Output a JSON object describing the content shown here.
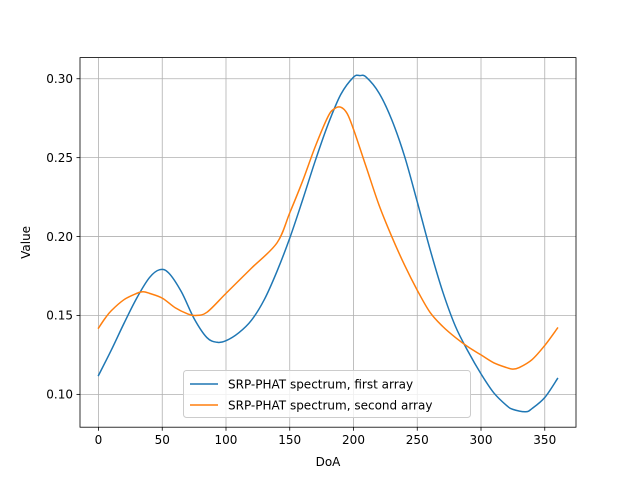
{
  "chart_data": {
    "type": "line",
    "title": "",
    "xlabel": "DoA",
    "ylabel": "Value",
    "xlim": [
      -14.5,
      374.5
    ],
    "ylim": [
      0.0792,
      0.3134
    ],
    "xticks": [
      0,
      50,
      100,
      150,
      200,
      250,
      300,
      350
    ],
    "yticks": [
      0.1,
      0.15,
      0.2,
      0.25,
      0.3
    ],
    "ytick_labels": [
      "0.10",
      "0.15",
      "0.20",
      "0.25",
      "0.30"
    ],
    "grid": true,
    "legend_position": "lower-center",
    "series": [
      {
        "name": "SRP-PHAT spectrum, first array",
        "color": "#1f77b4",
        "x": [
          0,
          10,
          20,
          30,
          40,
          48,
          55,
          65,
          75,
          85,
          93,
          100,
          110,
          120,
          130,
          140,
          150,
          160,
          170,
          180,
          190,
          200,
          205,
          210,
          220,
          230,
          240,
          250,
          260,
          270,
          280,
          290,
          300,
          310,
          320,
          325,
          335,
          340,
          350,
          360
        ],
        "y": [
          0.112,
          0.128,
          0.145,
          0.161,
          0.174,
          0.179,
          0.177,
          0.165,
          0.148,
          0.136,
          0.133,
          0.134,
          0.139,
          0.147,
          0.16,
          0.178,
          0.199,
          0.223,
          0.248,
          0.271,
          0.29,
          0.301,
          0.302,
          0.301,
          0.291,
          0.274,
          0.251,
          0.222,
          0.192,
          0.165,
          0.143,
          0.127,
          0.113,
          0.101,
          0.093,
          0.0905,
          0.089,
          0.091,
          0.098,
          0.11
        ]
      },
      {
        "name": "SRP-PHAT spectrum, second array",
        "color": "#ff7f0e",
        "x": [
          0,
          5,
          10,
          20,
          30,
          35,
          40,
          50,
          60,
          70,
          76,
          85,
          100,
          120,
          140,
          150,
          160,
          170,
          180,
          185,
          190,
          195,
          200,
          210,
          220,
          230,
          240,
          250,
          260,
          270,
          280,
          290,
          300,
          310,
          320,
          325,
          330,
          340,
          350,
          360
        ],
        "y": [
          0.142,
          0.148,
          0.153,
          0.16,
          0.164,
          0.165,
          0.164,
          0.161,
          0.155,
          0.151,
          0.15,
          0.152,
          0.164,
          0.18,
          0.196,
          0.215,
          0.235,
          0.257,
          0.276,
          0.281,
          0.282,
          0.278,
          0.268,
          0.244,
          0.22,
          0.2,
          0.182,
          0.166,
          0.152,
          0.143,
          0.136,
          0.13,
          0.125,
          0.12,
          0.117,
          0.116,
          0.117,
          0.122,
          0.131,
          0.142
        ]
      }
    ]
  }
}
